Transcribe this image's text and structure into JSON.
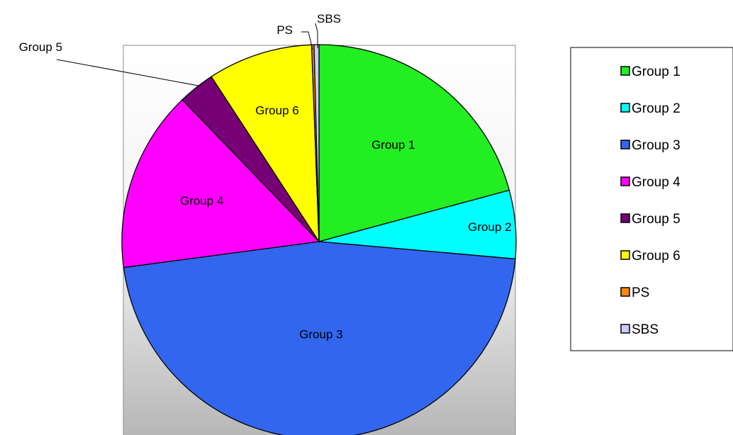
{
  "chart_data": {
    "type": "pie",
    "title": "",
    "start_angle_deg": 0,
    "direction": "clockwise",
    "legend_position": "right",
    "slices": [
      {
        "label": "Group 1",
        "value": 20.8,
        "color": "#22ee22"
      },
      {
        "label": "Group 2",
        "value": 5.6,
        "color": "#00ffff"
      },
      {
        "label": "Group 3",
        "value": 46.5,
        "color": "#3366ee"
      },
      {
        "label": "Group 4",
        "value": 14.9,
        "color": "#ff00ff"
      },
      {
        "label": "Group 5",
        "value": 3.0,
        "color": "#770077"
      },
      {
        "label": "Group 6",
        "value": 8.6,
        "color": "#ffff00"
      },
      {
        "label": "PS",
        "value": 0.2,
        "color": "#ff8800"
      },
      {
        "label": "SBS",
        "value": 0.4,
        "color": "#ccccff"
      }
    ]
  }
}
